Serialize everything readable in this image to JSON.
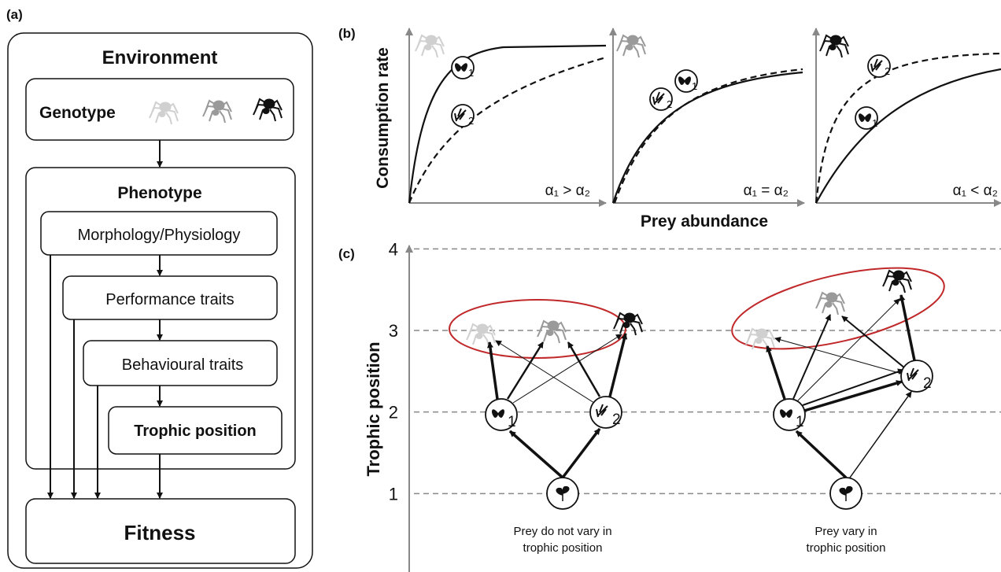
{
  "panel_a": {
    "label": "(a)",
    "environment": "Environment",
    "genotype": "Genotype",
    "phenotype": "Phenotype",
    "traits": [
      "Morphology/Physiology",
      "Performance traits",
      "Behavioural traits",
      "Trophic position"
    ],
    "fitness": "Fitness"
  },
  "panel_b": {
    "label": "(b)",
    "y_label": "Consumption rate",
    "x_label": "Prey abundance",
    "conditions": [
      "α₁ > α₂",
      "α₁ = α₂",
      "α₁ < α₂"
    ]
  },
  "panel_c": {
    "label": "(c)",
    "y_label": "Trophic position",
    "yticks": [
      1,
      2,
      3,
      4
    ],
    "captions": [
      [
        "Prey do not vary in",
        "trophic position"
      ],
      [
        "Prey vary in",
        "trophic position"
      ]
    ]
  },
  "prey_labels": [
    1,
    2
  ]
}
